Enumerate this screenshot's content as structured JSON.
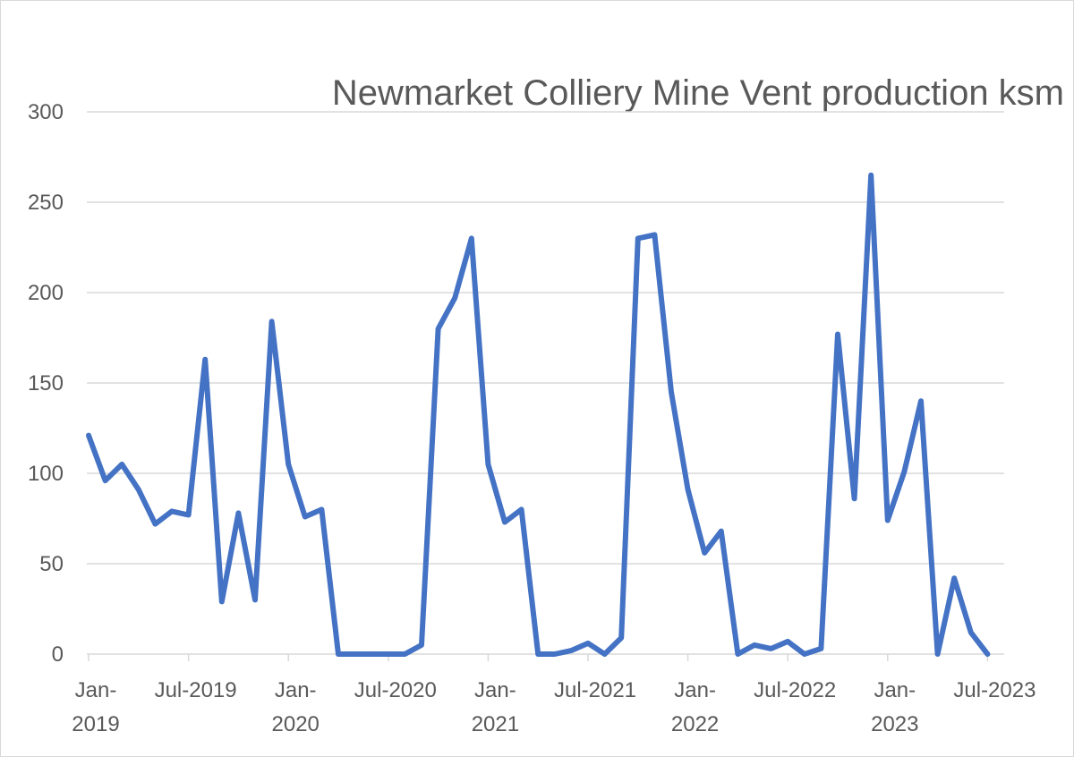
{
  "chart_data": {
    "type": "line",
    "title": "Newmarket Colliery Mine Vent production ksm",
    "xlabel": "",
    "ylabel": "",
    "ylim": [
      0,
      300
    ],
    "yticks": [
      "0",
      "50",
      "100",
      "150",
      "200",
      "250",
      "300"
    ],
    "grid": true,
    "legend": "none",
    "x_tick_labels": [
      {
        "month_index": 0,
        "lines": [
          "Jan-",
          "2019"
        ]
      },
      {
        "month_index": 6,
        "lines": [
          "Jul-2019"
        ]
      },
      {
        "month_index": 12,
        "lines": [
          "Jan-",
          "2020"
        ]
      },
      {
        "month_index": 18,
        "lines": [
          "Jul-2020"
        ]
      },
      {
        "month_index": 24,
        "lines": [
          "Jan-",
          "2021"
        ]
      },
      {
        "month_index": 30,
        "lines": [
          "Jul-2021"
        ]
      },
      {
        "month_index": 36,
        "lines": [
          "Jan-",
          "2022"
        ]
      },
      {
        "month_index": 42,
        "lines": [
          "Jul-2022"
        ]
      },
      {
        "month_index": 48,
        "lines": [
          "Jan-",
          "2023"
        ]
      },
      {
        "month_index": 54,
        "lines": [
          "Jul-2023"
        ]
      }
    ],
    "x": [
      "Jan-2019",
      "Feb-2019",
      "Mar-2019",
      "Apr-2019",
      "May-2019",
      "Jun-2019",
      "Jul-2019",
      "Aug-2019",
      "Sep-2019",
      "Oct-2019",
      "Nov-2019",
      "Dec-2019",
      "Jan-2020",
      "Feb-2020",
      "Mar-2020",
      "Apr-2020",
      "May-2020",
      "Jun-2020",
      "Jul-2020",
      "Aug-2020",
      "Sep-2020",
      "Oct-2020",
      "Nov-2020",
      "Dec-2020",
      "Jan-2021",
      "Feb-2021",
      "Mar-2021",
      "Apr-2021",
      "May-2021",
      "Jun-2021",
      "Jul-2021",
      "Aug-2021",
      "Sep-2021",
      "Oct-2021",
      "Nov-2021",
      "Dec-2021",
      "Jan-2022",
      "Feb-2022",
      "Mar-2022",
      "Apr-2022",
      "May-2022",
      "Jun-2022",
      "Jul-2022",
      "Aug-2022",
      "Sep-2022",
      "Oct-2022",
      "Nov-2022",
      "Dec-2022",
      "Jan-2023",
      "Feb-2023",
      "Mar-2023",
      "Apr-2023",
      "May-2023",
      "Jun-2023",
      "Jul-2023"
    ],
    "series": [
      {
        "color": "#4472c4",
        "values": [
          121,
          96,
          105,
          91,
          72,
          79,
          77,
          163,
          29,
          78,
          30,
          184,
          105,
          76,
          80,
          0,
          0,
          0,
          0,
          0,
          5,
          180,
          197,
          230,
          105,
          73,
          80,
          0,
          0,
          2,
          6,
          0,
          9,
          230,
          232,
          145,
          91,
          56,
          68,
          0,
          5,
          3,
          7,
          0,
          3,
          177,
          86,
          265,
          74,
          101,
          140,
          0,
          42,
          12,
          0
        ]
      }
    ]
  }
}
